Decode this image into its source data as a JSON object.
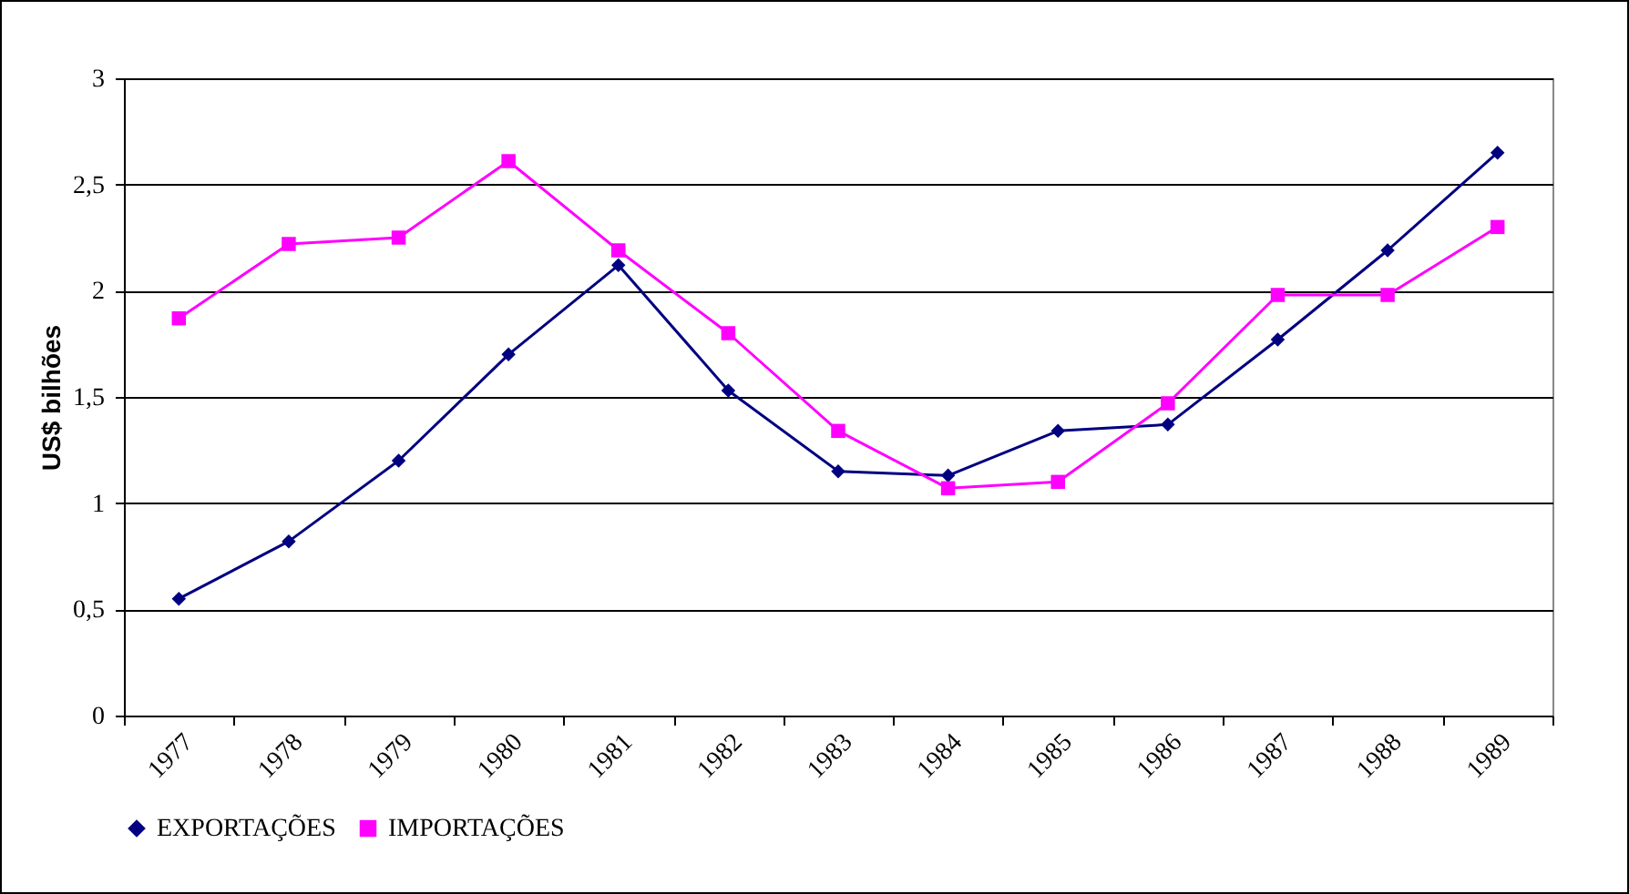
{
  "chart_data": {
    "type": "line",
    "ylabel": "US$ bilhões",
    "categories": [
      "1977",
      "1978",
      "1979",
      "1980",
      "1981",
      "1982",
      "1983",
      "1984",
      "1985",
      "1986",
      "1987",
      "1988",
      "1989"
    ],
    "series": [
      {
        "name": "EXPORTAÇÕES",
        "color": "#000080",
        "marker": "diamond",
        "values": [
          0.55,
          0.82,
          1.2,
          1.7,
          2.12,
          1.53,
          1.15,
          1.13,
          1.34,
          1.37,
          1.77,
          2.19,
          2.65
        ]
      },
      {
        "name": "IMPORTAÇÕES",
        "color": "#ff00ff",
        "marker": "square",
        "values": [
          1.87,
          2.22,
          2.25,
          2.61,
          2.19,
          1.8,
          1.34,
          1.07,
          1.1,
          1.47,
          1.98,
          1.98,
          2.3
        ]
      }
    ],
    "ylim": [
      0,
      3
    ],
    "yticks": [
      0,
      {
        "value": 0.5,
        "label": "0,5"
      },
      1,
      {
        "value": 1.5,
        "label": "1,5"
      },
      2,
      {
        "value": 2.5,
        "label": "2,5"
      },
      3
    ],
    "grid": "y",
    "legend": "bottom",
    "line_style": "solid"
  }
}
